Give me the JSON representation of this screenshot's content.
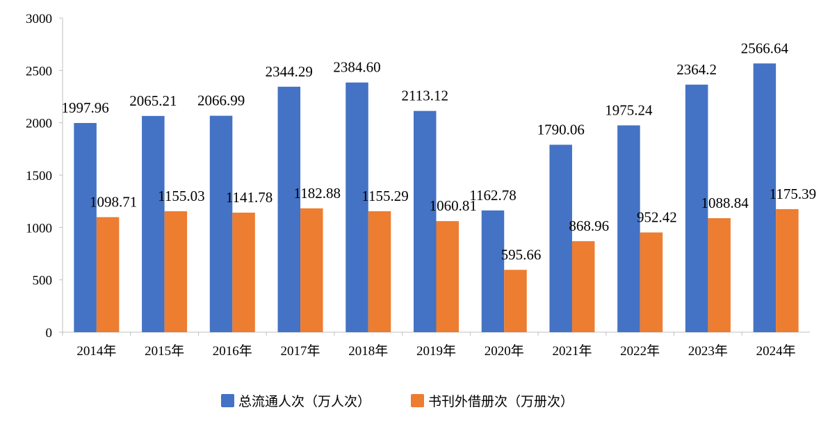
{
  "chart_data": {
    "type": "bar",
    "categories": [
      "2014年",
      "2015年",
      "2016年",
      "2017年",
      "2018年",
      "2019年",
      "2020年",
      "2021年",
      "2022年",
      "2023年",
      "2024年"
    ],
    "series": [
      {
        "name": "总流通人次（万人次）",
        "color": "#4472C4",
        "values": [
          1997.96,
          2065.21,
          2066.99,
          2344.29,
          2384.6,
          2113.12,
          1162.78,
          1790.06,
          1975.24,
          2364.2,
          2566.64
        ],
        "labels": [
          "1997.96",
          "2065.21",
          "2066.99",
          "2344.29",
          "2384.60",
          "2113.12",
          "1162.78",
          "1790.06",
          "1975.24",
          "2364.2",
          "2566.64"
        ]
      },
      {
        "name": "书刊外借册次（万册次）",
        "color": "#ED7D31",
        "values": [
          1098.71,
          1155.03,
          1141.78,
          1182.88,
          1155.29,
          1060.81,
          595.66,
          868.96,
          952.42,
          1088.84,
          1175.39
        ],
        "labels": [
          "1098.71",
          "1155.03",
          "1141.78",
          "1182.88",
          "1155.29",
          "1060.81",
          "595.66",
          "868.96",
          "952.42",
          "1088.84",
          "1175.39"
        ]
      }
    ],
    "yticks": [
      "0",
      "500",
      "1000",
      "1500",
      "2000",
      "2500",
      "3000"
    ],
    "ylim": [
      0,
      3000
    ],
    "grid": false,
    "legend": "bottom"
  }
}
